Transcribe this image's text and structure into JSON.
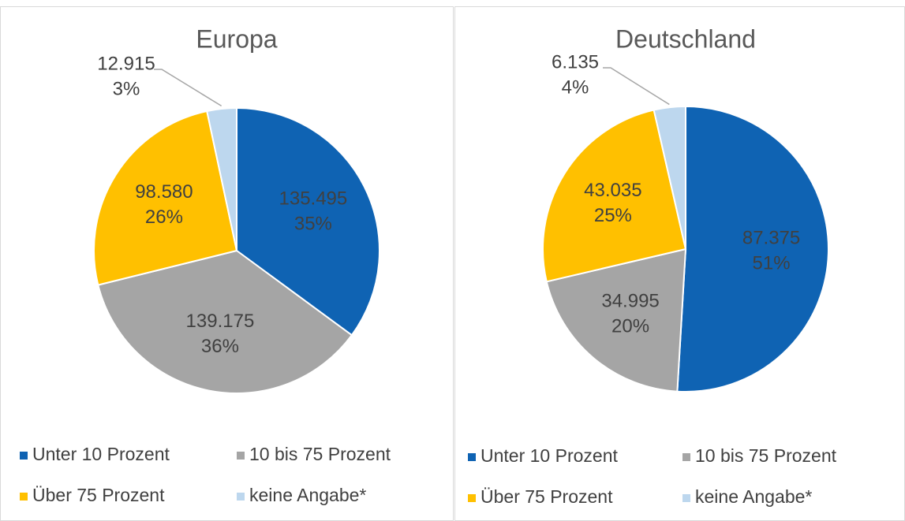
{
  "chart_data": [
    {
      "type": "pie",
      "title": "Europa",
      "categories": [
        "Unter 10 Prozent",
        "10 bis 75 Prozent",
        "Über 75 Prozent",
        "keine Angabe*"
      ],
      "values": [
        135495,
        139175,
        98580,
        12915
      ],
      "value_labels": [
        "135.495",
        "139.175",
        "98.580",
        "12.915"
      ],
      "percent_labels": [
        "35%",
        "36%",
        "26%",
        "3%"
      ],
      "colors": [
        "#0f63b3",
        "#a5a5a5",
        "#ffc000",
        "#bdd7ee"
      ]
    },
    {
      "type": "pie",
      "title": "Deutschland",
      "categories": [
        "Unter 10 Prozent",
        "10 bis 75 Prozent",
        "Über 75 Prozent",
        "keine Angabe*"
      ],
      "values": [
        87375,
        34995,
        43035,
        6135
      ],
      "value_labels": [
        "87.375",
        "34.995",
        "43.035",
        "6.135"
      ],
      "percent_labels": [
        "51%",
        "20%",
        "25%",
        "4%"
      ],
      "colors": [
        "#0f63b3",
        "#a5a5a5",
        "#ffc000",
        "#bdd7ee"
      ]
    }
  ]
}
